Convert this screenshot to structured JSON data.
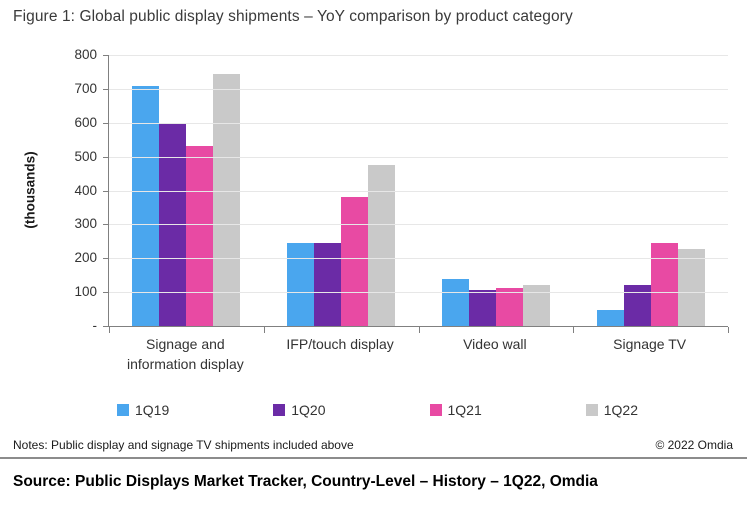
{
  "title": "Figure 1: Global public display shipments – YoY comparison by product category",
  "chart_data": {
    "type": "bar",
    "title": "Figure 1: Global public display shipments – YoY comparison by product category",
    "categories": [
      "Signage and information display",
      "IFP/touch display",
      "Video wall",
      "Signage TV"
    ],
    "category_lines": [
      [
        "Signage and",
        "information display"
      ],
      [
        "IFP/touch display"
      ],
      [
        "Video wall"
      ],
      [
        "Signage TV"
      ]
    ],
    "series": [
      {
        "name": "1Q19",
        "color": "#4AA6EE",
        "values": [
          710,
          245,
          138,
          47
        ]
      },
      {
        "name": "1Q20",
        "color": "#6B2BA6",
        "values": [
          600,
          245,
          105,
          120
        ]
      },
      {
        "name": "1Q21",
        "color": "#E84AA3",
        "values": [
          530,
          380,
          112,
          245
        ]
      },
      {
        "name": "1Q22",
        "color": "#C9C9C9",
        "values": [
          745,
          475,
          120,
          228
        ]
      }
    ],
    "xlabel": "",
    "ylabel": "(thousands)",
    "ylim": [
      0,
      800
    ],
    "ytick_step": 100,
    "ytick_labels": [
      "-",
      "100",
      "200",
      "300",
      "400",
      "500",
      "600",
      "700",
      "800"
    ],
    "grid": true,
    "legend_position": "bottom"
  },
  "notes": "Notes: Public display and signage TV shipments included above",
  "copyright": "© 2022 Omdia",
  "source": "Source: Public Displays Market Tracker, Country-Level – History – 1Q22, Omdia"
}
